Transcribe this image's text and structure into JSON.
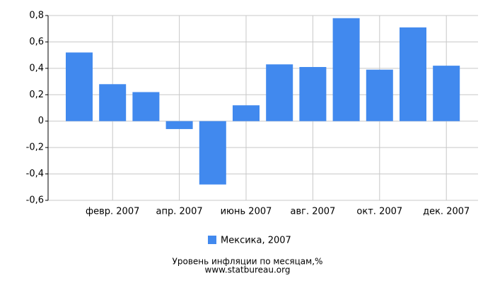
{
  "chart_data": {
    "type": "bar",
    "categories": [
      null,
      "февр. 2007",
      null,
      "апр. 2007",
      null,
      "июнь 2007",
      null,
      "авг. 2007",
      null,
      "окт. 2007",
      null,
      "дек. 2007"
    ],
    "series": [
      {
        "name": "Мексика, 2007",
        "color": "#4189ee",
        "values": [
          0.52,
          0.28,
          0.22,
          -0.06,
          -0.48,
          0.12,
          0.43,
          0.41,
          0.78,
          0.39,
          0.71,
          0.42
        ]
      }
    ],
    "ylim": [
      -0.6,
      0.8
    ],
    "yticks": [
      {
        "value": -0.6,
        "label": "-0,6"
      },
      {
        "value": -0.4,
        "label": "-0,4"
      },
      {
        "value": -0.2,
        "label": "-0,2"
      },
      0,
      {
        "value": 0.2,
        "label": "0,2"
      },
      {
        "value": 0.4,
        "label": "0,4"
      },
      {
        "value": 0.6,
        "label": "0,6"
      },
      {
        "value": 0.8,
        "label": "0,8"
      }
    ],
    "grid": true,
    "caption": "Уровень инфляции по месяцам,%",
    "source": "www.statbureau.org"
  }
}
